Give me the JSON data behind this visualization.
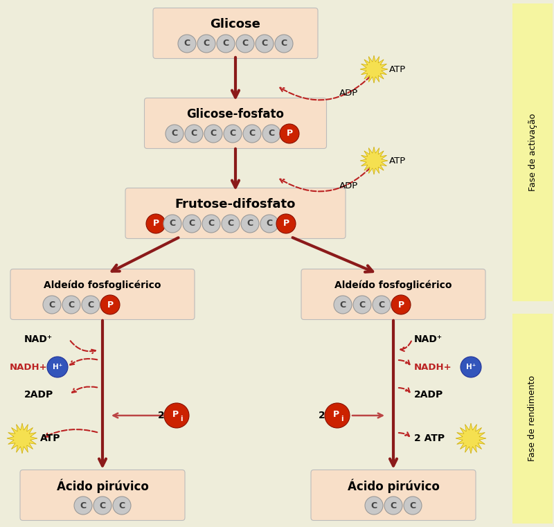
{
  "bg_color": "#eeedda",
  "box_color": "#f8dfc8",
  "dark_red": "#8b1a1a",
  "red": "#bb2222",
  "yellow_band": "#f5f5a0",
  "glicose_label": "Glicose",
  "glicose_fosfato_label": "Glicose-fosfato",
  "frutose_label": "Frutose-difosfato",
  "aldeido_label": "Aldeído fosfoglicérico",
  "acido_label": "Ácido pirúvico",
  "fase_activacao": "Fase de activação",
  "fase_rendimento": "Fase de rendimento",
  "atp_label": "ATP",
  "adp_label": "ADP",
  "nad_label": "NAD⁺",
  "nadh_label": "NADH",
  "adp2_label": "2ADP",
  "atp2_label": "ATP",
  "atp2r_label": "2 ATP"
}
